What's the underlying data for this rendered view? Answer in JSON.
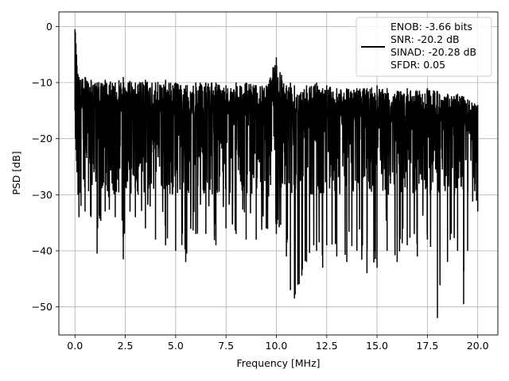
{
  "chart_data": {
    "type": "line",
    "xlabel": "Frequency [MHz]",
    "ylabel": "PSD [dB]",
    "xlim": [
      -0.8,
      21.0
    ],
    "ylim": [
      -55,
      2.6
    ],
    "xticks": [
      0.0,
      2.5,
      5.0,
      7.5,
      10.0,
      12.5,
      15.0,
      17.5,
      20.0
    ],
    "xtick_labels": [
      "0.0",
      "2.5",
      "5.0",
      "7.5",
      "10.0",
      "12.5",
      "15.0",
      "17.5",
      "20.0"
    ],
    "yticks": [
      0,
      -10,
      -20,
      -30,
      -40,
      -50
    ],
    "ytick_labels": [
      "0",
      "−10",
      "−20",
      "−30",
      "−40",
      "−50"
    ],
    "grid": true,
    "legend": {
      "placement": "top-right",
      "entries": [
        "ENOB: -3.66 bits",
        "SNR: -20.2 dB",
        "SINAD: -20.28 dB",
        "SFDR: 0.05"
      ]
    },
    "series": [
      {
        "color": "#000000",
        "points_note_free": true,
        "x": [
          0.0,
          0.02,
          0.05,
          0.08,
          0.1,
          0.15,
          0.2,
          0.3,
          0.5,
          0.8,
          1.1,
          1.5,
          2.0,
          2.4,
          3.0,
          3.5,
          4.0,
          4.5,
          5.0,
          5.5,
          6.0,
          6.5,
          7.0,
          7.5,
          8.0,
          8.5,
          9.0,
          9.5,
          10.0,
          10.5,
          10.7,
          10.9,
          11.5,
          12.0,
          12.3,
          12.5,
          13.0,
          13.5,
          14.0,
          14.5,
          15.0,
          15.5,
          16.0,
          16.5,
          17.0,
          17.5,
          18.0,
          18.5,
          19.0,
          19.3,
          19.5,
          20.0
        ],
        "upper": [
          -0.5,
          -1.0,
          -3.0,
          -5.0,
          -7.0,
          -8.5,
          -9.0,
          -9.5,
          -9.0,
          -9.5,
          -10.0,
          -9.5,
          -10.0,
          -9.0,
          -10.0,
          -9.5,
          -10.0,
          -9.5,
          -10.0,
          -10.5,
          -10.0,
          -10.0,
          -10.0,
          -10.5,
          -10.0,
          -10.0,
          -10.5,
          -10.5,
          -5.5,
          -10.5,
          -10.0,
          -10.5,
          -10.5,
          -10.0,
          -11.0,
          -10.5,
          -11.0,
          -11.0,
          -11.0,
          -11.0,
          -10.5,
          -11.0,
          -11.5,
          -11.0,
          -11.5,
          -11.0,
          -11.5,
          -12.0,
          -12.0,
          -12.5,
          -13.0,
          -14.0
        ],
        "lower": [
          -15.0,
          -20.0,
          -22.0,
          -24.0,
          -26.0,
          -30.0,
          -34.0,
          -32.0,
          -33.0,
          -34.0,
          -40.5,
          -33.0,
          -34.0,
          -41.5,
          -34.0,
          -36.0,
          -38.0,
          -39.0,
          -40.0,
          -42.0,
          -37.0,
          -37.0,
          -39.0,
          -36.0,
          -37.0,
          -38.0,
          -38.0,
          -36.0,
          -37.0,
          -41.0,
          -47.0,
          -48.5,
          -42.0,
          -40.0,
          -43.0,
          -39.0,
          -41.0,
          -42.0,
          -40.0,
          -44.0,
          -43.0,
          -40.0,
          -42.0,
          -39.0,
          -41.0,
          -38.0,
          -52.0,
          -42.0,
          -40.0,
          -49.5,
          -40.0,
          -33.0
        ],
        "typical_low": -30.0
      }
    ]
  }
}
